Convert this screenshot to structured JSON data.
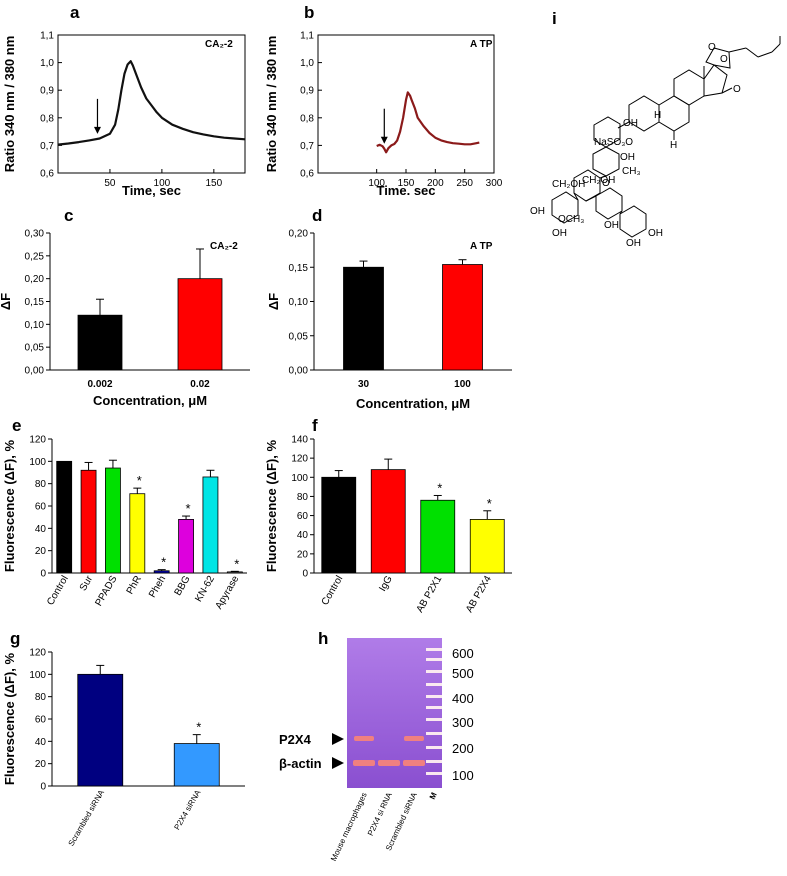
{
  "chart_data": [
    {
      "id": "a",
      "type": "line",
      "panel_label": "a",
      "annotation": "CA₂-2",
      "xlabel": "Time, sec",
      "ylabel": "Ratio 340 nm / 380 nm",
      "xlim": [
        0,
        180
      ],
      "ylim": [
        0.6,
        1.1
      ],
      "xticks": [
        50,
        100,
        150
      ],
      "yticks": [
        0.6,
        0.7,
        0.8,
        0.9,
        1.0,
        1.1
      ],
      "ytick_labels": [
        "0,6",
        "0,7",
        "0,8",
        "0,9",
        "1,0",
        "1,1"
      ],
      "color": "#111111",
      "arrow_x": 38,
      "x": [
        0,
        10,
        20,
        30,
        40,
        50,
        55,
        58,
        61,
        64,
        67,
        70,
        72,
        75,
        80,
        85,
        90,
        95,
        100,
        110,
        120,
        130,
        140,
        150,
        160,
        170,
        180
      ],
      "y": [
        0.703,
        0.707,
        0.712,
        0.718,
        0.725,
        0.742,
        0.775,
        0.83,
        0.9,
        0.96,
        0.993,
        1.005,
        0.99,
        0.96,
        0.91,
        0.87,
        0.845,
        0.82,
        0.8,
        0.775,
        0.76,
        0.748,
        0.74,
        0.733,
        0.728,
        0.725,
        0.722
      ]
    },
    {
      "id": "b",
      "type": "line",
      "panel_label": "b",
      "annotation": "A TP",
      "xlabel": "Time. sec",
      "ylabel": "Ratio 340 nm / 380 nm",
      "xlim": [
        0,
        300
      ],
      "ylim": [
        0.6,
        1.1
      ],
      "xticks": [
        100,
        150,
        200,
        250,
        300
      ],
      "yticks": [
        0.6,
        0.7,
        0.8,
        0.9,
        1.0,
        1.1
      ],
      "ytick_labels": [
        "0,6",
        "0,7",
        "0,8",
        "0,9",
        "1,0",
        "1,1"
      ],
      "color": "#8b1a1a",
      "arrow_x": 113,
      "x": [
        100,
        105,
        110,
        113,
        116,
        120,
        125,
        130,
        135,
        140,
        145,
        150,
        153,
        157,
        160,
        165,
        170,
        180,
        190,
        200,
        210,
        220,
        230,
        240,
        250,
        260,
        270,
        275
      ],
      "y": [
        0.698,
        0.702,
        0.697,
        0.688,
        0.675,
        0.69,
        0.7,
        0.705,
        0.718,
        0.75,
        0.8,
        0.865,
        0.892,
        0.88,
        0.862,
        0.835,
        0.8,
        0.77,
        0.745,
        0.728,
        0.718,
        0.712,
        0.708,
        0.706,
        0.704,
        0.704,
        0.708,
        0.71
      ]
    },
    {
      "id": "c",
      "type": "bar",
      "panel_label": "c",
      "annotation": "CA₂-2",
      "xlabel": "Concentration, μM",
      "ylabel": "ΔF",
      "categories": [
        "0.002",
        "0.02"
      ],
      "values": [
        0.12,
        0.2
      ],
      "errors": [
        0.035,
        0.065
      ],
      "colors": [
        "#000000",
        "#ff0000"
      ],
      "ylim": [
        0,
        0.3
      ],
      "yticks": [
        0,
        0.05,
        0.1,
        0.15,
        0.2,
        0.25,
        0.3
      ],
      "ytick_labels": [
        "0,00",
        "0,05",
        "0,10",
        "0,15",
        "0,20",
        "0,25",
        "0,30"
      ]
    },
    {
      "id": "d",
      "type": "bar",
      "panel_label": "d",
      "annotation": "A TP",
      "xlabel": "Concentration, μM",
      "ylabel": "ΔF",
      "categories": [
        "30",
        "100"
      ],
      "values": [
        0.15,
        0.154
      ],
      "errors": [
        0.009,
        0.007
      ],
      "colors": [
        "#000000",
        "#ff0000"
      ],
      "ylim": [
        0,
        0.2
      ],
      "yticks": [
        0,
        0.05,
        0.1,
        0.15,
        0.2
      ],
      "ytick_labels": [
        "0,00",
        "0,05",
        "0,10",
        "0,15",
        "0,20"
      ]
    },
    {
      "id": "e",
      "type": "bar",
      "panel_label": "e",
      "xlabel": "",
      "ylabel": "Fluorescence (ΔF), %",
      "categories": [
        "Control",
        "Sur",
        "PPADS",
        "PhR",
        "Pheh",
        "BBG",
        "KN-62",
        "Apyrase"
      ],
      "values": [
        100,
        92,
        94,
        71,
        2,
        48,
        86,
        1
      ],
      "errors": [
        0,
        7,
        7,
        5,
        1,
        3,
        6,
        0.5
      ],
      "significant": [
        false,
        false,
        false,
        true,
        true,
        true,
        false,
        true
      ],
      "colors": [
        "#000000",
        "#ff0000",
        "#00e000",
        "#ffff00",
        "#0000aa",
        "#dd00dd",
        "#00e5e5",
        "#888888"
      ],
      "ylim": [
        0,
        120
      ],
      "yticks": [
        0,
        20,
        40,
        60,
        80,
        100,
        120
      ],
      "ytick_labels": [
        "0",
        "20",
        "40",
        "60",
        "80",
        "100",
        "120"
      ]
    },
    {
      "id": "f",
      "type": "bar",
      "panel_label": "f",
      "xlabel": "",
      "ylabel": "Fluorescence (ΔF), %",
      "categories": [
        "Control",
        "IgG",
        "AB P2X1",
        "AB P2X4"
      ],
      "values": [
        100,
        108,
        76,
        56
      ],
      "errors": [
        7,
        11,
        5,
        9
      ],
      "significant": [
        false,
        false,
        true,
        true
      ],
      "colors": [
        "#000000",
        "#ff0000",
        "#00e000",
        "#ffff00"
      ],
      "ylim": [
        0,
        140
      ],
      "yticks": [
        0,
        20,
        40,
        60,
        80,
        100,
        120,
        140
      ],
      "ytick_labels": [
        "0",
        "20",
        "40",
        "60",
        "80",
        "100",
        "120",
        "140"
      ]
    },
    {
      "id": "g",
      "type": "bar",
      "panel_label": "g",
      "xlabel": "",
      "ylabel": "Fluorescence (ΔF), %",
      "categories": [
        "Scrambled siRNA",
        "P2X4 siRNA"
      ],
      "values": [
        100,
        38
      ],
      "errors": [
        8,
        8
      ],
      "significant": [
        false,
        true
      ],
      "colors": [
        "#000080",
        "#3399ff"
      ],
      "ylim": [
        0,
        120
      ],
      "yticks": [
        0,
        20,
        40,
        60,
        80,
        100,
        120
      ],
      "ytick_labels": [
        "0",
        "20",
        "40",
        "60",
        "80",
        "100",
        "120"
      ]
    }
  ],
  "gel": {
    "panel_label": "h",
    "band_labels": [
      "P2X4",
      "β-actin"
    ],
    "lanes": [
      "Mouse macrophages",
      "P2X4 si RNA",
      "Scrambled siRNA",
      "M"
    ],
    "marker_sizes": [
      "600",
      "500",
      "400",
      "300",
      "200",
      "100"
    ],
    "background": "#8a4fd0",
    "band_color": "#f08080"
  },
  "structure": {
    "panel_label": "i",
    "labels": [
      "O",
      "O",
      "O",
      "H",
      "H",
      "OH",
      "NaSO₃O",
      "OH",
      "CH₃",
      "O",
      "CH₂OH",
      "CH₂OH",
      "OH",
      "OCH₃",
      "OH",
      "OH",
      "OH",
      "OH"
    ]
  }
}
